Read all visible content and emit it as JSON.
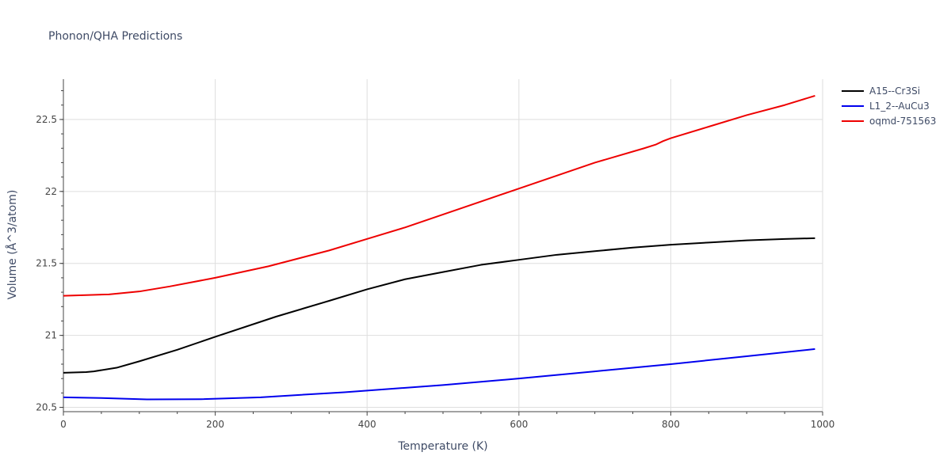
{
  "chart_data": {
    "type": "line",
    "title": "Phonon/QHA Predictions",
    "xlabel": "Temperature (K)",
    "ylabel": "Volume (Å^3/atom)",
    "xlim": [
      0,
      1000
    ],
    "ylim": [
      20.47,
      22.78
    ],
    "x_ticks": [
      0,
      200,
      400,
      600,
      800,
      1000
    ],
    "x_tick_labels": [
      "0",
      "200",
      "400",
      "600",
      "800",
      "1000"
    ],
    "y_ticks": [
      20.5,
      21,
      21.5,
      22,
      22.5
    ],
    "y_tick_labels": [
      "20.5",
      "21",
      "21.5",
      "22",
      "22.5"
    ],
    "grid": true,
    "legend_position": "top-right",
    "series": [
      {
        "name": "A15--Cr3Si",
        "color": "#000000",
        "x": [
          0,
          30,
          40,
          70,
          100,
          150,
          200,
          280,
          350,
          400,
          450,
          500,
          550,
          600,
          650,
          700,
          750,
          800,
          850,
          900,
          950,
          990
        ],
        "y": [
          20.74,
          20.745,
          20.75,
          20.775,
          20.82,
          20.9,
          20.99,
          21.13,
          21.24,
          21.32,
          21.39,
          21.44,
          21.49,
          21.525,
          21.56,
          21.585,
          21.61,
          21.63,
          21.645,
          21.66,
          21.67,
          21.675
        ]
      },
      {
        "name": "L1_2--AuCu3",
        "color": "#0000ee",
        "x": [
          0,
          50,
          110,
          185,
          260,
          370,
          500,
          600,
          700,
          800,
          900,
          990
        ],
        "y": [
          20.57,
          20.565,
          20.555,
          20.557,
          20.57,
          20.605,
          20.655,
          20.7,
          20.75,
          20.8,
          20.855,
          20.905
        ]
      },
      {
        "name": "oqmd-751563",
        "color": "#ee0000",
        "x": [
          0,
          30,
          60,
          100,
          140,
          200,
          270,
          350,
          400,
          450,
          500,
          550,
          600,
          650,
          700,
          765,
          780,
          790,
          800,
          850,
          900,
          950,
          990
        ],
        "y": [
          21.275,
          21.28,
          21.285,
          21.305,
          21.34,
          21.4,
          21.48,
          21.59,
          21.67,
          21.75,
          21.84,
          21.93,
          22.02,
          22.11,
          22.2,
          22.3,
          22.325,
          22.35,
          22.37,
          22.45,
          22.53,
          22.6,
          22.665
        ]
      }
    ]
  }
}
